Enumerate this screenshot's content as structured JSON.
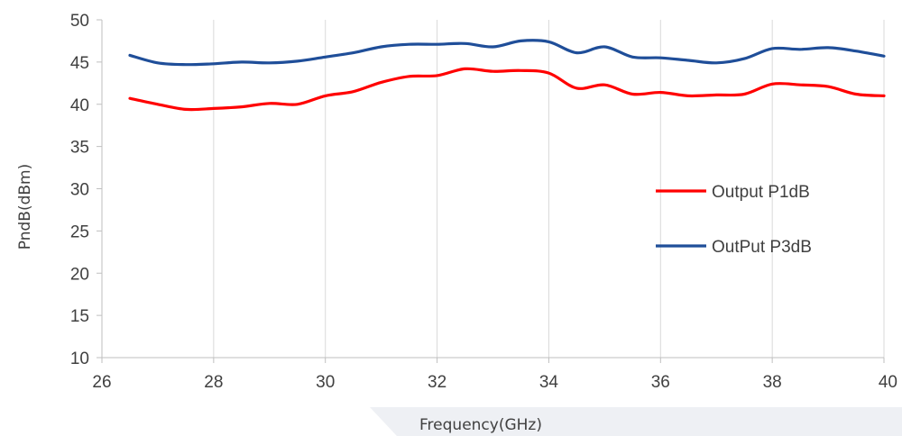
{
  "chart_data": {
    "type": "line",
    "xlabel": "Frequency(GHz)",
    "ylabel": "PndB(dBm)",
    "xlim": [
      26,
      40
    ],
    "ylim": [
      10,
      50
    ],
    "xticks": [
      26,
      28,
      30,
      32,
      34,
      36,
      38,
      40
    ],
    "yticks": [
      10,
      15,
      20,
      25,
      30,
      35,
      40,
      45,
      50
    ],
    "grid": "vertical",
    "legend_position": "center-right",
    "series": [
      {
        "name": "Output P1dB",
        "color": "#ff0000",
        "x": [
          26.5,
          27.0,
          27.5,
          28.0,
          28.5,
          29.0,
          29.5,
          30.0,
          30.5,
          31.0,
          31.5,
          32.0,
          32.5,
          33.0,
          33.5,
          34.0,
          34.5,
          35.0,
          35.5,
          36.0,
          36.5,
          37.0,
          37.5,
          38.0,
          38.5,
          39.0,
          39.5,
          40.0
        ],
        "y": [
          40.7,
          40.0,
          39.4,
          39.5,
          39.7,
          40.1,
          40.0,
          41.0,
          41.5,
          42.6,
          43.3,
          43.4,
          44.2,
          43.9,
          44.0,
          43.7,
          41.9,
          42.3,
          41.2,
          41.4,
          41.0,
          41.1,
          41.2,
          42.4,
          42.3,
          42.1,
          41.2,
          41.0
        ]
      },
      {
        "name": "OutPut P3dB",
        "color": "#1f4e99",
        "x": [
          26.5,
          27.0,
          27.5,
          28.0,
          28.5,
          29.0,
          29.5,
          30.0,
          30.5,
          31.0,
          31.5,
          32.0,
          32.5,
          33.0,
          33.5,
          34.0,
          34.5,
          35.0,
          35.5,
          36.0,
          36.5,
          37.0,
          37.5,
          38.0,
          38.5,
          39.0,
          39.5,
          40.0
        ],
        "y": [
          45.8,
          44.9,
          44.7,
          44.8,
          45.0,
          44.9,
          45.1,
          45.6,
          46.1,
          46.8,
          47.1,
          47.1,
          47.2,
          46.8,
          47.5,
          47.4,
          46.1,
          46.8,
          45.6,
          45.5,
          45.2,
          44.9,
          45.4,
          46.6,
          46.5,
          46.7,
          46.3,
          45.7
        ]
      }
    ]
  }
}
